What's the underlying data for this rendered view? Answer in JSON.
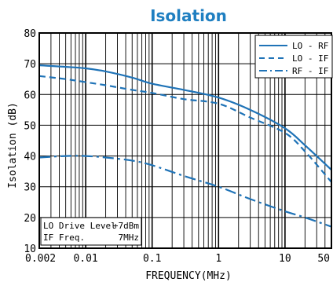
{
  "chart_data": {
    "type": "line",
    "title": "Isolation",
    "xlabel": "FREQUENCY(MHz)",
    "ylabel": "Isolation (dB)",
    "xscale": "log",
    "xlim": [
      0.002,
      50
    ],
    "ylim": [
      10,
      80
    ],
    "x_tick_labels": [
      "0.002",
      "0.01",
      "0.1",
      "1",
      "10",
      "50"
    ],
    "y_tick_labels": [
      "10",
      "20",
      "30",
      "40",
      "50",
      "60",
      "70",
      "80"
    ],
    "grid": true,
    "legend_position": "top-right",
    "series": [
      {
        "name": "LO - RF",
        "style": "solid",
        "x": [
          0.002,
          0.005,
          0.01,
          0.02,
          0.05,
          0.1,
          0.3,
          1,
          3,
          10,
          20,
          50
        ],
        "y": [
          69.5,
          69.0,
          68.5,
          67.5,
          65.5,
          63.5,
          61.5,
          59.0,
          55.0,
          49.0,
          43.5,
          35.5
        ]
      },
      {
        "name": "LO - IF",
        "style": "dashed",
        "x": [
          0.002,
          0.005,
          0.01,
          0.02,
          0.05,
          0.1,
          0.3,
          1,
          3,
          10,
          20,
          50
        ],
        "y": [
          66.0,
          65.0,
          64.0,
          63.0,
          61.5,
          60.5,
          58.5,
          57.0,
          52.5,
          47.5,
          41.5,
          31.5
        ]
      },
      {
        "name": "RF - IF",
        "style": "dashdot",
        "x": [
          0.002,
          0.005,
          0.01,
          0.02,
          0.05,
          0.1,
          0.3,
          1,
          3,
          10,
          20,
          50
        ],
        "y": [
          39.5,
          40.0,
          40.0,
          39.5,
          38.5,
          37.0,
          33.5,
          30.0,
          26.0,
          22.0,
          20.0,
          17.0
        ]
      }
    ],
    "annotation": {
      "line1_label": "LO Drive Level",
      "line1_value": "+7dBm",
      "line2_label": "IF Freq.",
      "line2_value": "7MHz"
    },
    "colors": {
      "title": "#1f7fc1",
      "series": "#1f73b7",
      "grid": "#000000"
    }
  }
}
